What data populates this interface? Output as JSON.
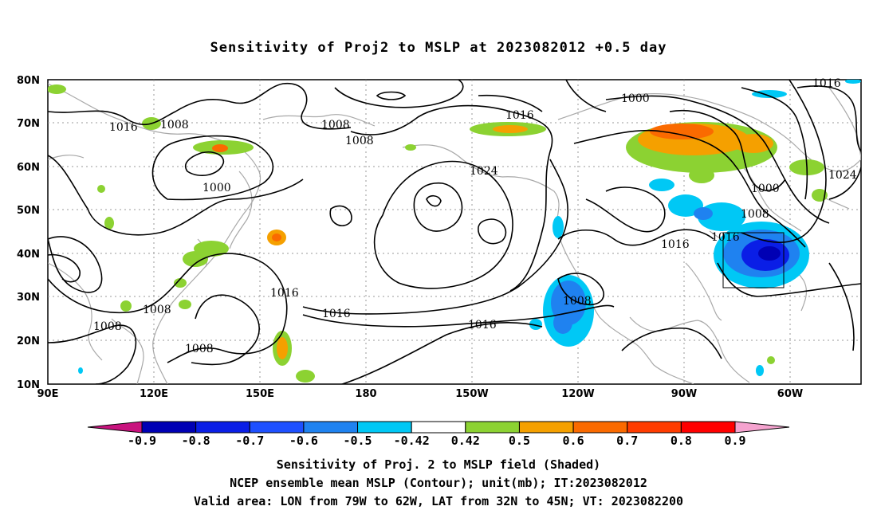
{
  "title": "Sensitivity of Proj2 to MSLP at 2023082012 +0.5 day",
  "map": {
    "lat_labels": [
      "80N",
      "70N",
      "60N",
      "50N",
      "40N",
      "30N",
      "20N",
      "10N"
    ],
    "lon_labels": [
      "90E",
      "120E",
      "150E",
      "180",
      "150W",
      "120W",
      "90W",
      "60W"
    ],
    "contour_labels": [
      {
        "text": "1016"
      },
      {
        "text": "1008"
      },
      {
        "text": "1008"
      },
      {
        "text": "1008"
      },
      {
        "text": "1000"
      },
      {
        "text": "1016"
      },
      {
        "text": "1024"
      },
      {
        "text": "1000"
      },
      {
        "text": "1016"
      },
      {
        "text": "1000"
      },
      {
        "text": "1008"
      },
      {
        "text": "1016"
      },
      {
        "text": "1016"
      },
      {
        "text": "1024"
      },
      {
        "text": "1016"
      },
      {
        "text": "1008"
      },
      {
        "text": "1016"
      },
      {
        "text": "1016"
      },
      {
        "text": "1008"
      },
      {
        "text": "1008"
      },
      {
        "text": "1008"
      }
    ],
    "valid_box": {
      "lon_west": -79,
      "lon_east": -62,
      "lat_south": 32,
      "lat_north": 45
    }
  },
  "colorbar": {
    "labels": [
      "-0.9",
      "-0.8",
      "-0.7",
      "-0.6",
      "-0.5",
      "-0.42",
      "0.42",
      "0.5",
      "0.6",
      "0.7",
      "0.8",
      "0.9"
    ],
    "colors": {
      "min_arrow": "#c8137e",
      "bins": [
        "#0000b4",
        "#0a1ee6",
        "#1e50ff",
        "#1f82f0",
        "#00c8f5",
        "#ffffff",
        "#8cd232",
        "#f5a000",
        "#fa6a00",
        "#ff3c00",
        "#ff0000"
      ],
      "max_arrow": "#f5a3cf"
    }
  },
  "caption": {
    "line1": "Sensitivity of Proj. 2 to MSLP field (Shaded)",
    "line2": "NCEP ensemble mean MSLP (Contour); unit(mb); IT:2023082012",
    "line3": "Valid area: LON from 79W to 62W, LAT from 32N to 45N; VT: 2023082200"
  }
}
